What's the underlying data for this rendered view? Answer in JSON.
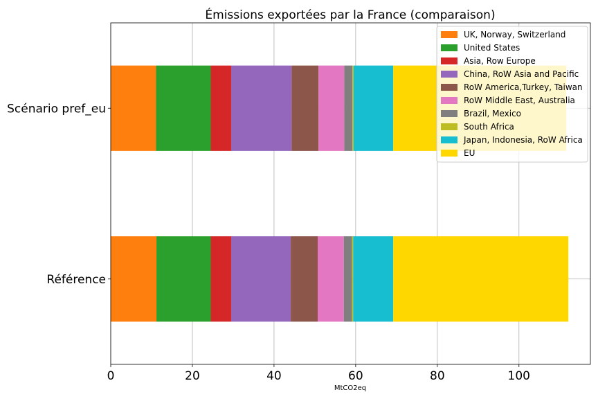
{
  "chart_data": {
    "type": "bar",
    "orientation": "horizontal",
    "stacked": true,
    "title": "Émissions exportées par la France (comparaison)",
    "xlabel": "MtCO2eq",
    "ylabel": "",
    "xlim": [
      0,
      117.5
    ],
    "xticks": [
      0,
      20,
      40,
      60,
      80,
      100
    ],
    "grid": true,
    "legend_position": "top-right",
    "categories": [
      "Référence",
      "Scénario pref_eu"
    ],
    "series": [
      {
        "name": "UK, Norway, Switzerland",
        "color": "#ff7f0e",
        "values": [
          11.2,
          11.1
        ]
      },
      {
        "name": "United States",
        "color": "#2ca02c",
        "values": [
          13.3,
          13.4
        ]
      },
      {
        "name": "Asia, Row Europe",
        "color": "#d62728",
        "values": [
          5.0,
          5.0
        ]
      },
      {
        "name": "China, RoW Asia and Pacific",
        "color": "#9467bd",
        "values": [
          14.6,
          14.8
        ]
      },
      {
        "name": "RoW America,Turkey, Taiwan",
        "color": "#8c564b",
        "values": [
          6.6,
          6.6
        ]
      },
      {
        "name": "RoW Middle East, Australia",
        "color": "#e377c2",
        "values": [
          6.4,
          6.3
        ]
      },
      {
        "name": "Brazil, Mexico",
        "color": "#7f7f7f",
        "values": [
          2.0,
          2.0
        ]
      },
      {
        "name": "South Africa",
        "color": "#bcbd22",
        "values": [
          0.3,
          0.3
        ]
      },
      {
        "name": "Japan, Indonesia, RoW Africa",
        "color": "#17becf",
        "values": [
          9.8,
          9.7
        ]
      },
      {
        "name": "EU",
        "color": "#ffd700",
        "values": [
          42.9,
          42.4
        ]
      }
    ]
  }
}
